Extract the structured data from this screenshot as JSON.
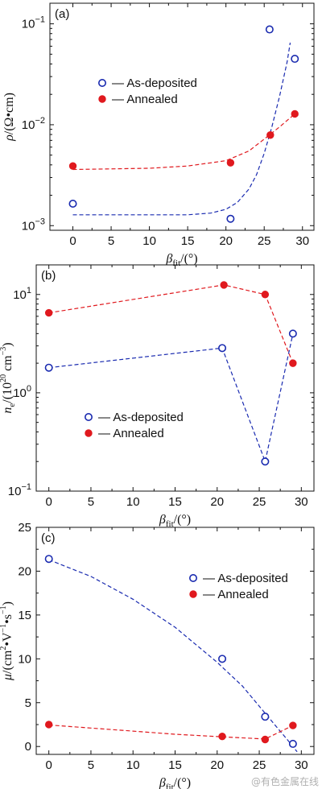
{
  "chart_data": [
    {
      "panel": "(a)",
      "type": "scatter",
      "scale": "log",
      "ylabel_main": "ρ",
      "ylabel_unit": "/(Ω•cm)",
      "xlabel_main": "β",
      "xlabel_sub": "fit",
      "xlabel_unit": "/(°)",
      "xlim": [
        -3,
        31.5
      ],
      "ylim": [
        0.0009,
        0.16
      ],
      "xticks": [
        0,
        5,
        10,
        15,
        20,
        25,
        30
      ],
      "yticks": [
        {
          "value": 0.001,
          "mant": "10",
          "exp": "−3"
        },
        {
          "value": 0.01,
          "mant": "10",
          "exp": "−2"
        },
        {
          "value": 0.1,
          "mant": "10",
          "exp": "−1"
        }
      ],
      "legend_position": "center-left",
      "series": [
        {
          "name": "As-deposited",
          "color": "#1a2bb0",
          "marker": "open-circle",
          "points": [
            [
              0,
              0.00165
            ],
            [
              20.6,
              0.00117
            ],
            [
              25.7,
              0.088
            ],
            [
              29,
              0.045
            ]
          ],
          "fit": [
            [
              0,
              0.00128
            ],
            [
              15,
              0.00128
            ],
            [
              18,
              0.00133
            ],
            [
              20,
              0.00145
            ],
            [
              21.5,
              0.0017
            ],
            [
              23,
              0.0023
            ],
            [
              24,
              0.0032
            ],
            [
              25,
              0.0052
            ],
            [
              26,
              0.0095
            ],
            [
              27,
              0.019
            ],
            [
              28,
              0.042
            ],
            [
              28.4,
              0.065
            ]
          ]
        },
        {
          "name": "Annealed",
          "color": "#e0191e",
          "marker": "filled-circle",
          "points": [
            [
              0,
              0.0039
            ],
            [
              20.6,
              0.0042
            ],
            [
              25.8,
              0.0079
            ],
            [
              29,
              0.0128
            ]
          ],
          "fit": [
            [
              0,
              0.0036
            ],
            [
              10,
              0.0037
            ],
            [
              15,
              0.0039
            ],
            [
              20,
              0.0044
            ],
            [
              23,
              0.0055
            ],
            [
              25,
              0.0072
            ],
            [
              27,
              0.0095
            ],
            [
              29,
              0.0128
            ]
          ]
        }
      ]
    },
    {
      "panel": "(b)",
      "type": "line",
      "scale": "log",
      "ylabel_main": "n",
      "ylabel_sub": "e",
      "ylabel_unit": "/(10",
      "ylabel_exp": "20",
      "ylabel_unit2": " cm",
      "ylabel_exp2": "−3",
      "ylabel_close": ")",
      "xlabel_main": "β",
      "xlabel_sub": "fit",
      "xlabel_unit": "/(°)",
      "xlim": [
        -1.5,
        31.5
      ],
      "ylim": [
        0.1,
        20
      ],
      "xticks": [
        0,
        5,
        10,
        15,
        20,
        25,
        30
      ],
      "yticks": [
        {
          "value": 0.1,
          "mant": "10",
          "exp": "−1"
        },
        {
          "value": 1,
          "mant": "10",
          "exp": "0"
        },
        {
          "value": 10,
          "mant": "10",
          "exp": "1"
        }
      ],
      "legend_position": "lower-center",
      "series": [
        {
          "name": "As-deposited",
          "color": "#1a2bb0",
          "marker": "open-circle",
          "points": [
            [
              0,
              1.8
            ],
            [
              20.6,
              2.85
            ],
            [
              25.7,
              0.2
            ],
            [
              29,
              4.0
            ]
          ]
        },
        {
          "name": "Annealed",
          "color": "#e0191e",
          "marker": "filled-circle",
          "points": [
            [
              0,
              6.5
            ],
            [
              20.8,
              12.5
            ],
            [
              25.7,
              10.0
            ],
            [
              29,
              2.0
            ]
          ]
        }
      ]
    },
    {
      "panel": "(c)",
      "type": "scatter",
      "scale": "linear",
      "ylabel_main": "μ",
      "ylabel_unit": "/(cm",
      "ylabel_exp": "2",
      "ylabel_unit2": "•V",
      "ylabel_exp2": "−1",
      "ylabel_unit3": "•s",
      "ylabel_exp3": "−1",
      "ylabel_close": ")",
      "xlabel_main": "β",
      "xlabel_sub": "fit",
      "xlabel_unit": "/(°)",
      "xlim": [
        -1.5,
        31.5
      ],
      "ylim": [
        -0.9,
        25
      ],
      "xticks": [
        0,
        5,
        10,
        15,
        20,
        25,
        30
      ],
      "yticks": [
        {
          "value": 0,
          "label": "0"
        },
        {
          "value": 5,
          "label": "5"
        },
        {
          "value": 10,
          "label": "10"
        },
        {
          "value": 15,
          "label": "15"
        },
        {
          "value": 20,
          "label": "20"
        },
        {
          "value": 25,
          "label": "25"
        }
      ],
      "legend_position": "top-right",
      "series": [
        {
          "name": "As-deposited",
          "color": "#1a2bb0",
          "marker": "open-circle",
          "points": [
            [
              0,
              21.4
            ],
            [
              20.6,
              10.0
            ],
            [
              25.7,
              3.4
            ],
            [
              29,
              0.3
            ]
          ],
          "fit": [
            [
              0,
              21.3
            ],
            [
              5,
              19.4
            ],
            [
              10,
              16.8
            ],
            [
              15,
              13.6
            ],
            [
              20,
              9.6
            ],
            [
              23,
              6.9
            ],
            [
              25,
              4.6
            ],
            [
              27,
              2.3
            ],
            [
              28.5,
              0.6
            ],
            [
              29.5,
              -0.6
            ]
          ]
        },
        {
          "name": "Annealed",
          "color": "#e0191e",
          "marker": "filled-circle",
          "points": [
            [
              0,
              2.5
            ],
            [
              20.6,
              1.15
            ],
            [
              25.7,
              0.8
            ],
            [
              29,
              2.4
            ]
          ],
          "fit": [
            [
              0,
              2.45
            ],
            [
              5,
              2.1
            ],
            [
              10,
              1.75
            ],
            [
              15,
              1.4
            ],
            [
              20.6,
              1.1
            ],
            [
              25.7,
              0.85
            ],
            [
              29,
              2.4
            ]
          ]
        }
      ]
    }
  ],
  "watermark": "@有色金属在线"
}
